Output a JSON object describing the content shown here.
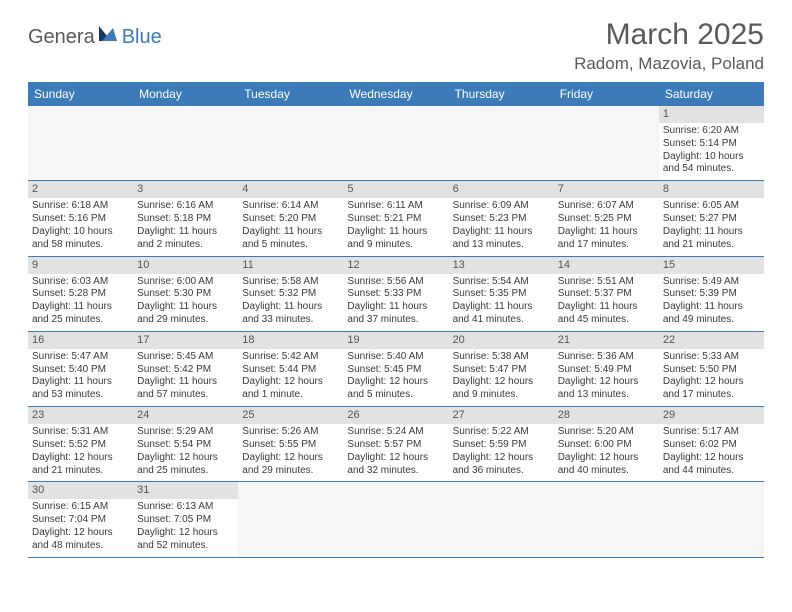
{
  "logo": {
    "word1": "Genera",
    "word2": "Blue"
  },
  "title": "March 2025",
  "location": "Radom, Mazovia, Poland",
  "colors": {
    "header_bg": "#3c7bb8",
    "header_text": "#ffffff",
    "daynum_bg": "#e2e2e2",
    "empty_bg": "#f6f6f6",
    "body_text": "#3a3a3a",
    "title_text": "#5a5a5a"
  },
  "dayHeaders": [
    "Sunday",
    "Monday",
    "Tuesday",
    "Wednesday",
    "Thursday",
    "Friday",
    "Saturday"
  ],
  "weeks": [
    [
      null,
      null,
      null,
      null,
      null,
      null,
      {
        "n": "1",
        "sr": "6:20 AM",
        "ss": "5:14 PM",
        "dl": "10 hours and 54 minutes."
      }
    ],
    [
      {
        "n": "2",
        "sr": "6:18 AM",
        "ss": "5:16 PM",
        "dl": "10 hours and 58 minutes."
      },
      {
        "n": "3",
        "sr": "6:16 AM",
        "ss": "5:18 PM",
        "dl": "11 hours and 2 minutes."
      },
      {
        "n": "4",
        "sr": "6:14 AM",
        "ss": "5:20 PM",
        "dl": "11 hours and 5 minutes."
      },
      {
        "n": "5",
        "sr": "6:11 AM",
        "ss": "5:21 PM",
        "dl": "11 hours and 9 minutes."
      },
      {
        "n": "6",
        "sr": "6:09 AM",
        "ss": "5:23 PM",
        "dl": "11 hours and 13 minutes."
      },
      {
        "n": "7",
        "sr": "6:07 AM",
        "ss": "5:25 PM",
        "dl": "11 hours and 17 minutes."
      },
      {
        "n": "8",
        "sr": "6:05 AM",
        "ss": "5:27 PM",
        "dl": "11 hours and 21 minutes."
      }
    ],
    [
      {
        "n": "9",
        "sr": "6:03 AM",
        "ss": "5:28 PM",
        "dl": "11 hours and 25 minutes."
      },
      {
        "n": "10",
        "sr": "6:00 AM",
        "ss": "5:30 PM",
        "dl": "11 hours and 29 minutes."
      },
      {
        "n": "11",
        "sr": "5:58 AM",
        "ss": "5:32 PM",
        "dl": "11 hours and 33 minutes."
      },
      {
        "n": "12",
        "sr": "5:56 AM",
        "ss": "5:33 PM",
        "dl": "11 hours and 37 minutes."
      },
      {
        "n": "13",
        "sr": "5:54 AM",
        "ss": "5:35 PM",
        "dl": "11 hours and 41 minutes."
      },
      {
        "n": "14",
        "sr": "5:51 AM",
        "ss": "5:37 PM",
        "dl": "11 hours and 45 minutes."
      },
      {
        "n": "15",
        "sr": "5:49 AM",
        "ss": "5:39 PM",
        "dl": "11 hours and 49 minutes."
      }
    ],
    [
      {
        "n": "16",
        "sr": "5:47 AM",
        "ss": "5:40 PM",
        "dl": "11 hours and 53 minutes."
      },
      {
        "n": "17",
        "sr": "5:45 AM",
        "ss": "5:42 PM",
        "dl": "11 hours and 57 minutes."
      },
      {
        "n": "18",
        "sr": "5:42 AM",
        "ss": "5:44 PM",
        "dl": "12 hours and 1 minute."
      },
      {
        "n": "19",
        "sr": "5:40 AM",
        "ss": "5:45 PM",
        "dl": "12 hours and 5 minutes."
      },
      {
        "n": "20",
        "sr": "5:38 AM",
        "ss": "5:47 PM",
        "dl": "12 hours and 9 minutes."
      },
      {
        "n": "21",
        "sr": "5:36 AM",
        "ss": "5:49 PM",
        "dl": "12 hours and 13 minutes."
      },
      {
        "n": "22",
        "sr": "5:33 AM",
        "ss": "5:50 PM",
        "dl": "12 hours and 17 minutes."
      }
    ],
    [
      {
        "n": "23",
        "sr": "5:31 AM",
        "ss": "5:52 PM",
        "dl": "12 hours and 21 minutes."
      },
      {
        "n": "24",
        "sr": "5:29 AM",
        "ss": "5:54 PM",
        "dl": "12 hours and 25 minutes."
      },
      {
        "n": "25",
        "sr": "5:26 AM",
        "ss": "5:55 PM",
        "dl": "12 hours and 29 minutes."
      },
      {
        "n": "26",
        "sr": "5:24 AM",
        "ss": "5:57 PM",
        "dl": "12 hours and 32 minutes."
      },
      {
        "n": "27",
        "sr": "5:22 AM",
        "ss": "5:59 PM",
        "dl": "12 hours and 36 minutes."
      },
      {
        "n": "28",
        "sr": "5:20 AM",
        "ss": "6:00 PM",
        "dl": "12 hours and 40 minutes."
      },
      {
        "n": "29",
        "sr": "5:17 AM",
        "ss": "6:02 PM",
        "dl": "12 hours and 44 minutes."
      }
    ],
    [
      {
        "n": "30",
        "sr": "6:15 AM",
        "ss": "7:04 PM",
        "dl": "12 hours and 48 minutes."
      },
      {
        "n": "31",
        "sr": "6:13 AM",
        "ss": "7:05 PM",
        "dl": "12 hours and 52 minutes."
      },
      null,
      null,
      null,
      null,
      null
    ]
  ],
  "labels": {
    "sunrise": "Sunrise: ",
    "sunset": "Sunset: ",
    "daylight": "Daylight: "
  }
}
